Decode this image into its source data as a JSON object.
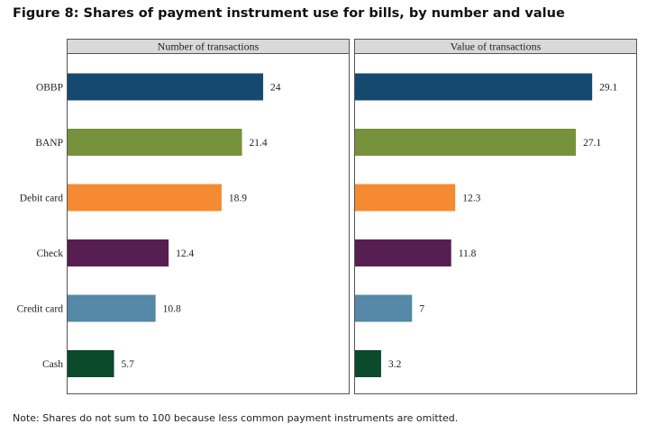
{
  "figure": {
    "title": "Figure 8: Shares of payment instrument use for bills, by number and value",
    "note": "Note: Shares do not sum to 100 because less common payment instruments are omitted."
  },
  "chart_data": {
    "type": "bar",
    "orientation": "horizontal",
    "categories": [
      "OBBP",
      "BANP",
      "Debit card",
      "Check",
      "Credit card",
      "Cash"
    ],
    "colors": [
      "#154a6e",
      "#76923c",
      "#f58a32",
      "#561e51",
      "#5589a7",
      "#0b4a2a"
    ],
    "panels": [
      {
        "name": "Number of transactions",
        "values": [
          24,
          21.4,
          18.9,
          12.4,
          10.8,
          5.7
        ],
        "labels": [
          "24",
          "21.4",
          "18.9",
          "12.4",
          "10.8",
          "5.7"
        ]
      },
      {
        "name": "Value of transactions",
        "values": [
          29.1,
          27.1,
          12.3,
          11.8,
          7,
          3.2
        ],
        "labels": [
          "29.1",
          "27.1",
          "12.3",
          "11.8",
          "7",
          "3.2"
        ]
      }
    ],
    "xlim": [
      0,
      34.5
    ],
    "grid": false
  }
}
